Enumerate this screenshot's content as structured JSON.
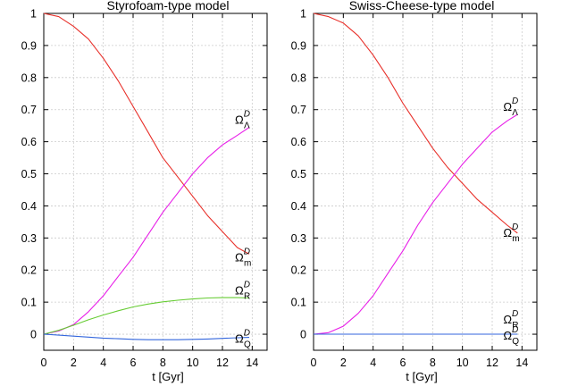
{
  "chart_data": [
    {
      "type": "line",
      "title": "Styrofoam-type model",
      "xlabel": "t [Gyr]",
      "ylabel": "",
      "xlim": [
        0,
        15
      ],
      "ylim": [
        -0.05,
        1.0
      ],
      "xticks": [
        0,
        2,
        4,
        6,
        8,
        10,
        12,
        14
      ],
      "yticks": [
        0,
        0.1,
        0.2,
        0.3,
        0.4,
        0.5,
        0.6,
        0.7,
        0.8,
        0.9,
        1
      ],
      "grid": true,
      "series": [
        {
          "name": "Ω_m^D",
          "color": "#e8302a",
          "label_pos": "end",
          "x": [
            0,
            1,
            2,
            3,
            4,
            5,
            6,
            7,
            8,
            9,
            10,
            11,
            12,
            13,
            13.8
          ],
          "y": [
            1.0,
            0.99,
            0.96,
            0.92,
            0.86,
            0.79,
            0.71,
            0.63,
            0.55,
            0.49,
            0.43,
            0.37,
            0.32,
            0.27,
            0.25
          ]
        },
        {
          "name": "Ω_Λ^D",
          "color": "#e820e8",
          "label_pos": "end",
          "x": [
            0,
            1,
            2,
            3,
            4,
            5,
            6,
            7,
            8,
            9,
            10,
            11,
            12,
            13,
            13.8
          ],
          "y": [
            0.0,
            0.01,
            0.03,
            0.07,
            0.12,
            0.18,
            0.24,
            0.31,
            0.38,
            0.44,
            0.5,
            0.55,
            0.59,
            0.62,
            0.645
          ]
        },
        {
          "name": "Ω_R^D",
          "color": "#66cc33",
          "label_pos": "end",
          "x": [
            0,
            1,
            2,
            3,
            4,
            5,
            6,
            7,
            8,
            9,
            10,
            11,
            12,
            13,
            13.8
          ],
          "y": [
            0.0,
            0.012,
            0.028,
            0.045,
            0.06,
            0.073,
            0.085,
            0.094,
            0.101,
            0.106,
            0.11,
            0.113,
            0.114,
            0.114,
            0.113
          ]
        },
        {
          "name": "Ω_Q^D",
          "color": "#3366dd",
          "label_pos": "end",
          "x": [
            0,
            1,
            2,
            3,
            4,
            5,
            6,
            7,
            8,
            9,
            10,
            11,
            12,
            13,
            13.8
          ],
          "y": [
            0.0,
            -0.003,
            -0.006,
            -0.009,
            -0.012,
            -0.014,
            -0.016,
            -0.017,
            -0.017,
            -0.017,
            -0.016,
            -0.015,
            -0.013,
            -0.011,
            -0.01
          ]
        }
      ]
    },
    {
      "type": "line",
      "title": "Swiss-Cheese-type model",
      "xlabel": "t [Gyr]",
      "ylabel": "",
      "xlim": [
        0,
        15
      ],
      "ylim": [
        -0.05,
        1.0
      ],
      "xticks": [
        0,
        2,
        4,
        6,
        8,
        10,
        12,
        14
      ],
      "yticks": [
        0,
        0.1,
        0.2,
        0.3,
        0.4,
        0.5,
        0.6,
        0.7,
        0.8,
        0.9,
        1
      ],
      "grid": true,
      "series": [
        {
          "name": "Ω_m^D",
          "color": "#e8302a",
          "label_pos": "end",
          "x": [
            0,
            1,
            2,
            3,
            4,
            5,
            6,
            7,
            8,
            9,
            10,
            11,
            12,
            13,
            13.7
          ],
          "y": [
            1.0,
            0.99,
            0.97,
            0.93,
            0.87,
            0.8,
            0.72,
            0.65,
            0.58,
            0.52,
            0.47,
            0.42,
            0.38,
            0.34,
            0.315
          ]
        },
        {
          "name": "Ω_Λ^D",
          "color": "#e820e8",
          "label_pos": "end",
          "x": [
            0,
            1,
            2,
            3,
            4,
            5,
            6,
            7,
            8,
            9,
            10,
            11,
            12,
            13,
            13.7
          ],
          "y": [
            0.0,
            0.005,
            0.025,
            0.065,
            0.12,
            0.19,
            0.26,
            0.34,
            0.41,
            0.47,
            0.53,
            0.58,
            0.63,
            0.665,
            0.685
          ]
        },
        {
          "name": "Ω_R^D",
          "color": "#66cc33",
          "label_pos": "end",
          "x": [
            0,
            13.7
          ],
          "y": [
            0.0,
            0.0
          ]
        },
        {
          "name": "Ω_Q^D",
          "color": "#3366dd",
          "label_pos": "end",
          "x": [
            0,
            13.7
          ],
          "y": [
            0.0,
            0.0
          ]
        }
      ]
    }
  ]
}
